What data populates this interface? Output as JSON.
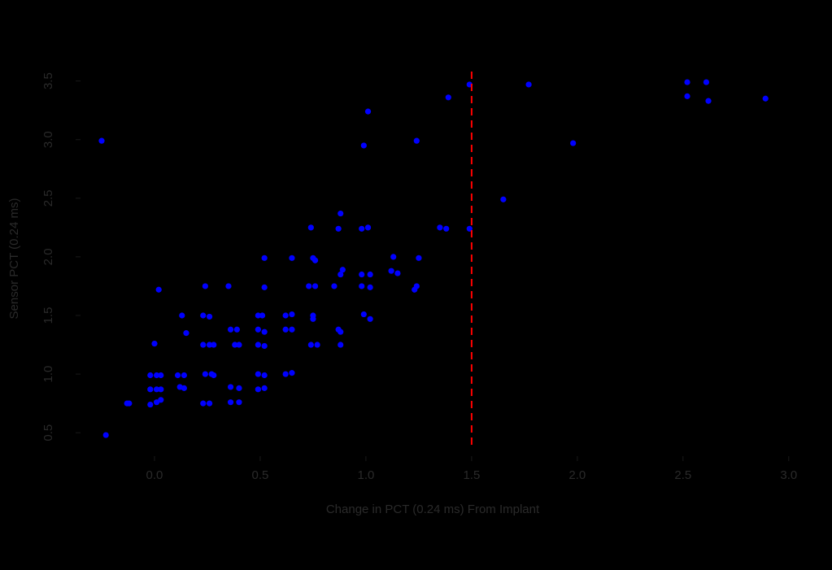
{
  "chart_data": {
    "type": "scatter",
    "x_label": "Change in PCT (0.24 ms) From Implant",
    "y_label": "Sensor PCT (0.24 ms)",
    "color": "#0000ff",
    "vline": 1.5,
    "vline_color": "#ff0000",
    "xlim": [
      -0.35,
      3.12
    ],
    "xticks": [
      {
        "value": 0,
        "label": "0.0"
      },
      0.5,
      {
        "value": 1,
        "label": "1.0"
      },
      1.5,
      {
        "value": 2,
        "label": "2.0"
      },
      2.5,
      {
        "value": 3,
        "label": "3.0"
      }
    ],
    "ylim": [
      0.3,
      3.65
    ],
    "yticks": [
      0.5,
      {
        "value": 1,
        "label": "1.0"
      },
      1.5,
      {
        "value": 2,
        "label": "2.0"
      },
      2.5,
      {
        "value": 3,
        "label": "3.0"
      },
      3.5
    ],
    "x": [
      -0.25,
      -0.23,
      -0.12,
      -0.13,
      0.02,
      -0.02,
      0.01,
      0.03,
      -0.02,
      0.01,
      0.03,
      -0.02,
      0.01,
      0.03,
      0,
      0.13,
      0.15,
      0.11,
      0.14,
      0.12,
      0.14,
      0.24,
      0.23,
      0.26,
      0.23,
      0.26,
      0.28,
      0.24,
      0.27,
      0.28,
      0.23,
      0.26,
      0.35,
      0.36,
      0.39,
      0.38,
      0.4,
      0.36,
      0.4,
      0.36,
      0.4,
      0.49,
      0.51,
      0.49,
      0.52,
      0.49,
      0.52,
      0.49,
      0.52,
      0.49,
      0.52,
      0.52,
      0.52,
      0.62,
      0.65,
      0.62,
      0.65,
      0.62,
      0.65,
      0.65,
      0.75,
      0.76,
      0.73,
      0.76,
      0.75,
      0.75,
      0.74,
      0.77,
      0.74,
      0.87,
      0.88,
      0.88,
      0.89,
      0.85,
      0.88,
      0.88,
      0.87,
      0.98,
      1.01,
      0.98,
      1.02,
      0.98,
      1.02,
      0.99,
      1.02,
      0.99,
      1.01,
      1.13,
      1.12,
      1.15,
      1.24,
      1.25,
      1.24,
      1.23,
      1.35,
      1.38,
      1.49,
      1.49,
      1.39,
      1.65,
      1.77,
      1.98,
      2.52,
      2.52,
      2.61,
      2.62,
      2.89
    ],
    "y": [
      2.99,
      0.48,
      0.75,
      0.75,
      1.72,
      0.74,
      0.76,
      0.78,
      0.87,
      0.87,
      0.87,
      0.99,
      0.99,
      0.99,
      1.26,
      1.5,
      1.35,
      0.99,
      0.99,
      0.89,
      0.88,
      1.75,
      1.5,
      1.49,
      1.25,
      1.25,
      1.25,
      1.0,
      1.0,
      0.99,
      0.75,
      0.75,
      1.75,
      1.38,
      1.38,
      1.25,
      1.25,
      0.89,
      0.88,
      0.76,
      0.76,
      1.5,
      1.5,
      1.38,
      1.36,
      1.25,
      1.24,
      1.0,
      0.99,
      0.87,
      0.88,
      1.99,
      1.74,
      1.5,
      1.51,
      1.38,
      1.38,
      1.0,
      1.01,
      1.99,
      1.99,
      1.97,
      1.75,
      1.75,
      1.5,
      1.47,
      1.25,
      1.25,
      2.25,
      2.24,
      2.37,
      1.85,
      1.89,
      1.75,
      1.36,
      1.25,
      1.38,
      2.24,
      2.25,
      1.85,
      1.85,
      1.75,
      1.74,
      1.51,
      1.47,
      2.95,
      3.24,
      2.0,
      1.88,
      1.86,
      2.99,
      1.99,
      1.75,
      1.72,
      2.25,
      2.24,
      3.47,
      2.24,
      3.36,
      2.49,
      3.47,
      2.97,
      3.49,
      3.37,
      3.49,
      3.33,
      3.35
    ]
  }
}
